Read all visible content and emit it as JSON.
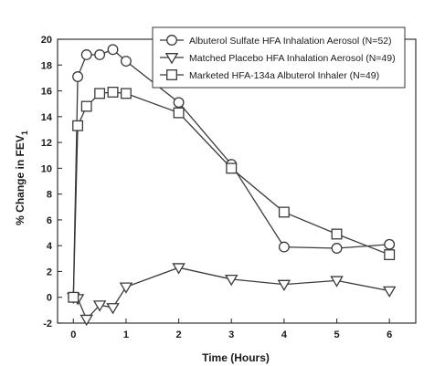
{
  "chart_data": {
    "type": "line",
    "xlabel": "Time (Hours)",
    "ylabel": "% Change in FEV",
    "ylabel_subscript": "1",
    "xlim": [
      -0.3,
      6.5
    ],
    "ylim": [
      -2,
      20
    ],
    "xticks": [
      "0",
      "1",
      "2",
      "3",
      "4",
      "5",
      "6"
    ],
    "yticks": [
      "-2",
      "0",
      "2",
      "4",
      "6",
      "8",
      "10",
      "12",
      "14",
      "16",
      "18",
      "20"
    ],
    "grid": false,
    "legend_position": "top-right",
    "series": [
      {
        "name": "Albuterol Sulfate HFA Inhalation Aerosol (N=52)",
        "marker": "circle",
        "color": "#3a3a3a",
        "x": [
          0,
          0.083,
          0.25,
          0.5,
          0.75,
          1,
          2,
          3,
          4,
          5,
          6
        ],
        "y": [
          0,
          17.1,
          18.8,
          18.8,
          19.2,
          18.3,
          15.1,
          10.3,
          3.9,
          3.8,
          4.1
        ]
      },
      {
        "name": "Matched Placebo HFA Inhalation Aerosol (N=49)",
        "marker": "triangle-down",
        "color": "#3a3a3a",
        "x": [
          0,
          0.083,
          0.25,
          0.5,
          0.75,
          1,
          2,
          3,
          4,
          5,
          6
        ],
        "y": [
          0,
          -0.1,
          -1.7,
          -0.6,
          -0.8,
          0.8,
          2.3,
          1.4,
          1.0,
          1.3,
          0.5
        ]
      },
      {
        "name": "Marketed HFA-134a Albuterol Inhaler (N=49)",
        "marker": "square",
        "color": "#3a3a3a",
        "x": [
          0,
          0.083,
          0.25,
          0.5,
          0.75,
          1,
          2,
          3,
          4,
          5,
          6
        ],
        "y": [
          0,
          13.3,
          14.8,
          15.8,
          15.9,
          15.8,
          14.3,
          10.0,
          6.6,
          4.9,
          3.3
        ]
      }
    ]
  }
}
